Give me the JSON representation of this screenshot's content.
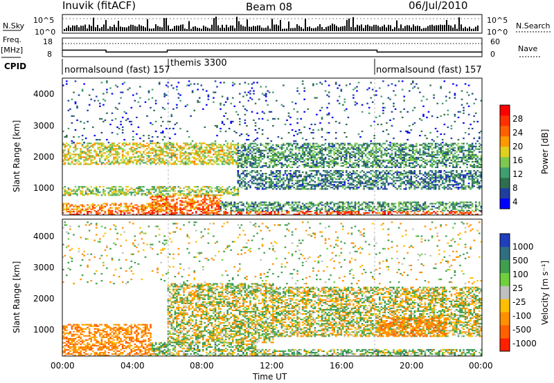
{
  "header": {
    "station": "Inuvik (fitACF)",
    "beam": "Beam 08",
    "date": "06/Jul/2010"
  },
  "nsky_panel": {
    "left_label": "N.Sky",
    "right_label": "N.Search",
    "left_ticks": [
      "10^5",
      "10^0"
    ],
    "right_ticks": [
      "10^5",
      "10^0"
    ]
  },
  "freq_panel": {
    "left_label_top": "Freq.",
    "left_label_bottom": "[MHz]",
    "right_label": "Nave",
    "left_ticks": [
      "18",
      "8"
    ],
    "right_ticks": [
      "60",
      "0"
    ]
  },
  "cpid": {
    "label": "CPID",
    "segments": [
      {
        "text": "normalsound (fast) 157",
        "start_h": 0
      },
      {
        "text": "themis 3300",
        "start_h": 6
      },
      {
        "text": "normalsound (fast) 157",
        "start_h": 18
      }
    ]
  },
  "power_panel": {
    "ylabel": "Slant Range [km]",
    "yticks": [
      "4000",
      "3000",
      "2000",
      "1000"
    ],
    "colorbar_label": "Power [dB]",
    "colorbar_ticks": [
      "28",
      "24",
      "20",
      "16",
      "12",
      "8",
      "4"
    ],
    "colors": [
      "#0000ff",
      "#1f3f9f",
      "#2f6f4f",
      "#3f9f6f",
      "#7fc84f",
      "#e0d020",
      "#ff9900",
      "#ff6000",
      "#ff3000",
      "#ff0000"
    ]
  },
  "velocity_panel": {
    "ylabel": "Slant Range [km]",
    "yticks": [
      "4000",
      "3000",
      "2000",
      "1000"
    ],
    "colorbar_label": "Velocity [m s⁻¹]",
    "colorbar_ticks": [
      "1000",
      "500",
      "100",
      "25",
      "-25",
      "-100",
      "-500",
      "-1000"
    ],
    "colors": [
      "#1f3fbf",
      "#2f6f7f",
      "#3f9f4f",
      "#6fcf3f",
      "#c0c0c0",
      "#ffc000",
      "#ff9000",
      "#ff6000",
      "#ff2000"
    ]
  },
  "xaxis": {
    "label": "Time UT",
    "ticks": [
      "00:00",
      "04:00",
      "08:00",
      "12:00",
      "16:00",
      "20:00",
      "00:00"
    ]
  },
  "chart_data": {
    "type": "heatmap",
    "title": "Beam 08",
    "xlabel": "Time UT",
    "ylabel": "Slant Range [km]",
    "xlim_hours": [
      0,
      24
    ],
    "ylim_km": [
      180,
      4600
    ],
    "frequency_segments_mhz": [
      {
        "start_h": 0,
        "end_h": 2.5,
        "value": 11.5
      },
      {
        "start_h": 2.5,
        "end_h": 6,
        "value": 10.5
      },
      {
        "start_h": 6,
        "end_h": 18,
        "value": 11.5
      },
      {
        "start_h": 18,
        "end_h": 24,
        "value": 10.5
      }
    ],
    "power_bands": [
      {
        "t0": 0,
        "t1": 24,
        "r0": 180,
        "r1": 300,
        "dB": 24
      },
      {
        "t0": 0,
        "t1": 6.5,
        "r0": 300,
        "r1": 550,
        "dB": 20
      },
      {
        "t0": 5,
        "t1": 9,
        "r0": 300,
        "r1": 800,
        "dB": 22
      },
      {
        "t0": 9,
        "t1": 24,
        "r0": 300,
        "r1": 600,
        "dB": 10
      },
      {
        "t0": 0,
        "t1": 10,
        "r0": 800,
        "r1": 1100,
        "dB": 14
      },
      {
        "t0": 10,
        "t1": 24,
        "r0": 1000,
        "r1": 1600,
        "dB": 8
      },
      {
        "t0": 0,
        "t1": 10,
        "r0": 1800,
        "r1": 2500,
        "dB": 16
      },
      {
        "t0": 10,
        "t1": 24,
        "r0": 1700,
        "r1": 2500,
        "dB": 10
      },
      {
        "t0": 0,
        "t1": 24,
        "r0": 2500,
        "r1": 4500,
        "dB": 6
      }
    ],
    "velocity_bands": [
      {
        "t0": 0,
        "t1": 5,
        "r0": 180,
        "r1": 1200,
        "v": -300
      },
      {
        "t0": 5,
        "t1": 11,
        "r0": 180,
        "r1": 600,
        "v": 80
      },
      {
        "t0": 11,
        "t1": 24,
        "r0": 180,
        "r1": 400,
        "v": 80
      },
      {
        "t0": 6,
        "t1": 12,
        "r0": 600,
        "r1": 2500,
        "v": 0
      },
      {
        "t0": 12,
        "t1": 24,
        "r0": 800,
        "r1": 2400,
        "v": 0
      },
      {
        "t0": 18,
        "t1": 22,
        "r0": 800,
        "r1": 1400,
        "v": -300
      },
      {
        "t0": 0,
        "t1": 24,
        "r0": 2500,
        "r1": 4500,
        "v": 0
      }
    ]
  }
}
